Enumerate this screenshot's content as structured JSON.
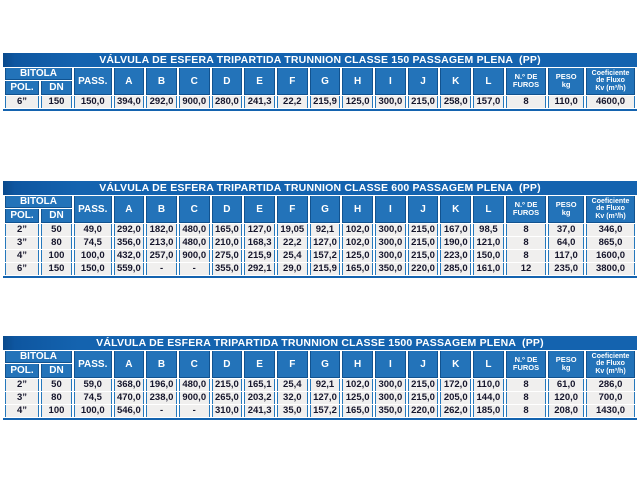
{
  "page": {
    "background": "#ffffff"
  },
  "colors": {
    "title_bar": "#1463af",
    "title_bar_left_edge": "#0a4a8c",
    "header_cell": "#2373b9",
    "header_cell_border": "#11528f",
    "header_text": "#ffffff",
    "cell_background": "#f0efee",
    "cell_border": "#2578bc",
    "data_text": "#16162c",
    "bottom_rule": "#1463af"
  },
  "header": {
    "bitola": "BITOLA",
    "pol": "POL.",
    "dn": "DN",
    "pass": "PASS.",
    "letters": [
      "A",
      "B",
      "C",
      "D",
      "E",
      "F",
      "G",
      "H",
      "I",
      "J",
      "K",
      "L"
    ],
    "furos_lines": [
      "N.º DE",
      "FUROS"
    ],
    "peso_lines": [
      "PESO",
      "kg"
    ],
    "coef_lines": [
      "Coeficiente",
      "de Fluxo",
      "Kv (m³/h)"
    ]
  },
  "tables": [
    {
      "title": "VÁLVULA DE ESFERA TRIPARTIDA TRUNNION CLASSE 150 PASSAGEM PLENA  (PP)",
      "rows": [
        [
          "6”",
          "150",
          "150,0",
          "394,0",
          "292,0",
          "900,0",
          "280,0",
          "241,3",
          "22,2",
          "215,9",
          "125,0",
          "300,0",
          "215,0",
          "258,0",
          "157,0",
          "8",
          "110,0",
          "4600,0"
        ]
      ]
    },
    {
      "title": "VÁLVULA DE ESFERA TRIPARTIDA TRUNNION CLASSE 600 PASSAGEM PLENA  (PP)",
      "rows": [
        [
          "2”",
          "50",
          "49,0",
          "292,0",
          "182,0",
          "480,0",
          "165,0",
          "127,0",
          "19,05",
          "92,1",
          "102,0",
          "300,0",
          "215,0",
          "167,0",
          "98,5",
          "8",
          "37,0",
          "346,0"
        ],
        [
          "3”",
          "80",
          "74,5",
          "356,0",
          "213,0",
          "480,0",
          "210,0",
          "168,3",
          "22,2",
          "127,0",
          "102,0",
          "300,0",
          "215,0",
          "190,0",
          "121,0",
          "8",
          "64,0",
          "865,0"
        ],
        [
          "4”",
          "100",
          "100,0",
          "432,0",
          "257,0",
          "900,0",
          "275,0",
          "215,9",
          "25,4",
          "157,2",
          "125,0",
          "300,0",
          "215,0",
          "223,0",
          "150,0",
          "8",
          "117,0",
          "1600,0"
        ],
        [
          "6”",
          "150",
          "150,0",
          "559,0",
          "-",
          "-",
          "355,0",
          "292,1",
          "29,0",
          "215,9",
          "165,0",
          "350,0",
          "220,0",
          "285,0",
          "161,0",
          "12",
          "235,0",
          "3800,0"
        ]
      ]
    },
    {
      "title": "VÁLVULA DE ESFERA TRIPARTIDA TRUNNION CLASSE 1500 PASSAGEM PLENA  (PP)",
      "rows": [
        [
          "2”",
          "50",
          "59,0",
          "368,0",
          "196,0",
          "480,0",
          "215,0",
          "165,1",
          "25,4",
          "92,1",
          "102,0",
          "300,0",
          "215,0",
          "172,0",
          "110,0",
          "8",
          "61,0",
          "286,0"
        ],
        [
          "3”",
          "80",
          "74,5",
          "470,0",
          "238,0",
          "900,0",
          "265,0",
          "203,2",
          "32,0",
          "127,0",
          "125,0",
          "300,0",
          "215,0",
          "205,0",
          "144,0",
          "8",
          "120,0",
          "700,0"
        ],
        [
          "4”",
          "100",
          "100,0",
          "546,0",
          "-",
          "-",
          "310,0",
          "241,3",
          "35,0",
          "157,2",
          "165,0",
          "350,0",
          "220,0",
          "262,0",
          "185,0",
          "8",
          "208,0",
          "1430,0"
        ]
      ]
    }
  ]
}
